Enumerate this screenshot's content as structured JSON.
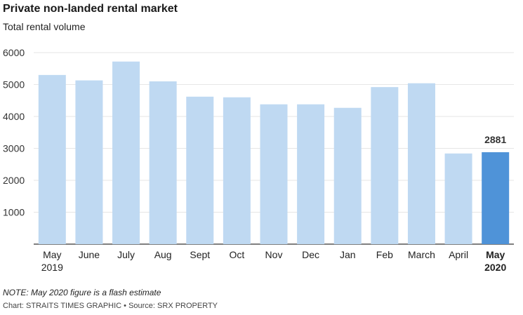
{
  "title": "Private non-landed rental market",
  "subtitle": "Total rental volume",
  "note": "NOTE: May 2020 figure is a flash estimate",
  "credit": "Chart: STRAITS TIMES GRAPHIC • Source: SRX PROPERTY",
  "colors": {
    "bar": "#bfd9f2",
    "highlight": "#4f93d8",
    "grid": "#e6e6e6",
    "axis": "#333333"
  },
  "chart_data": {
    "type": "bar",
    "title": "Private non-landed rental market",
    "subtitle": "Total rental volume",
    "categories": [
      [
        "May",
        "2019"
      ],
      [
        "June"
      ],
      [
        "July"
      ],
      [
        "Aug"
      ],
      [
        "Sept"
      ],
      [
        "Oct"
      ],
      [
        "Nov"
      ],
      [
        "Dec"
      ],
      [
        "Jan"
      ],
      [
        "Feb"
      ],
      [
        "March"
      ],
      [
        "April"
      ],
      [
        "May",
        "2020"
      ]
    ],
    "values": [
      5300,
      5130,
      5720,
      5100,
      4620,
      4600,
      4380,
      4380,
      4270,
      4920,
      5040,
      2840,
      2881
    ],
    "highlight_index": 12,
    "data_labels": [
      {
        "index": 12,
        "text": "2881"
      }
    ],
    "yticks": [
      1000,
      2000,
      3000,
      4000,
      5000,
      6000
    ],
    "ylim": [
      0,
      6000
    ],
    "grid": true,
    "legend": "none"
  }
}
